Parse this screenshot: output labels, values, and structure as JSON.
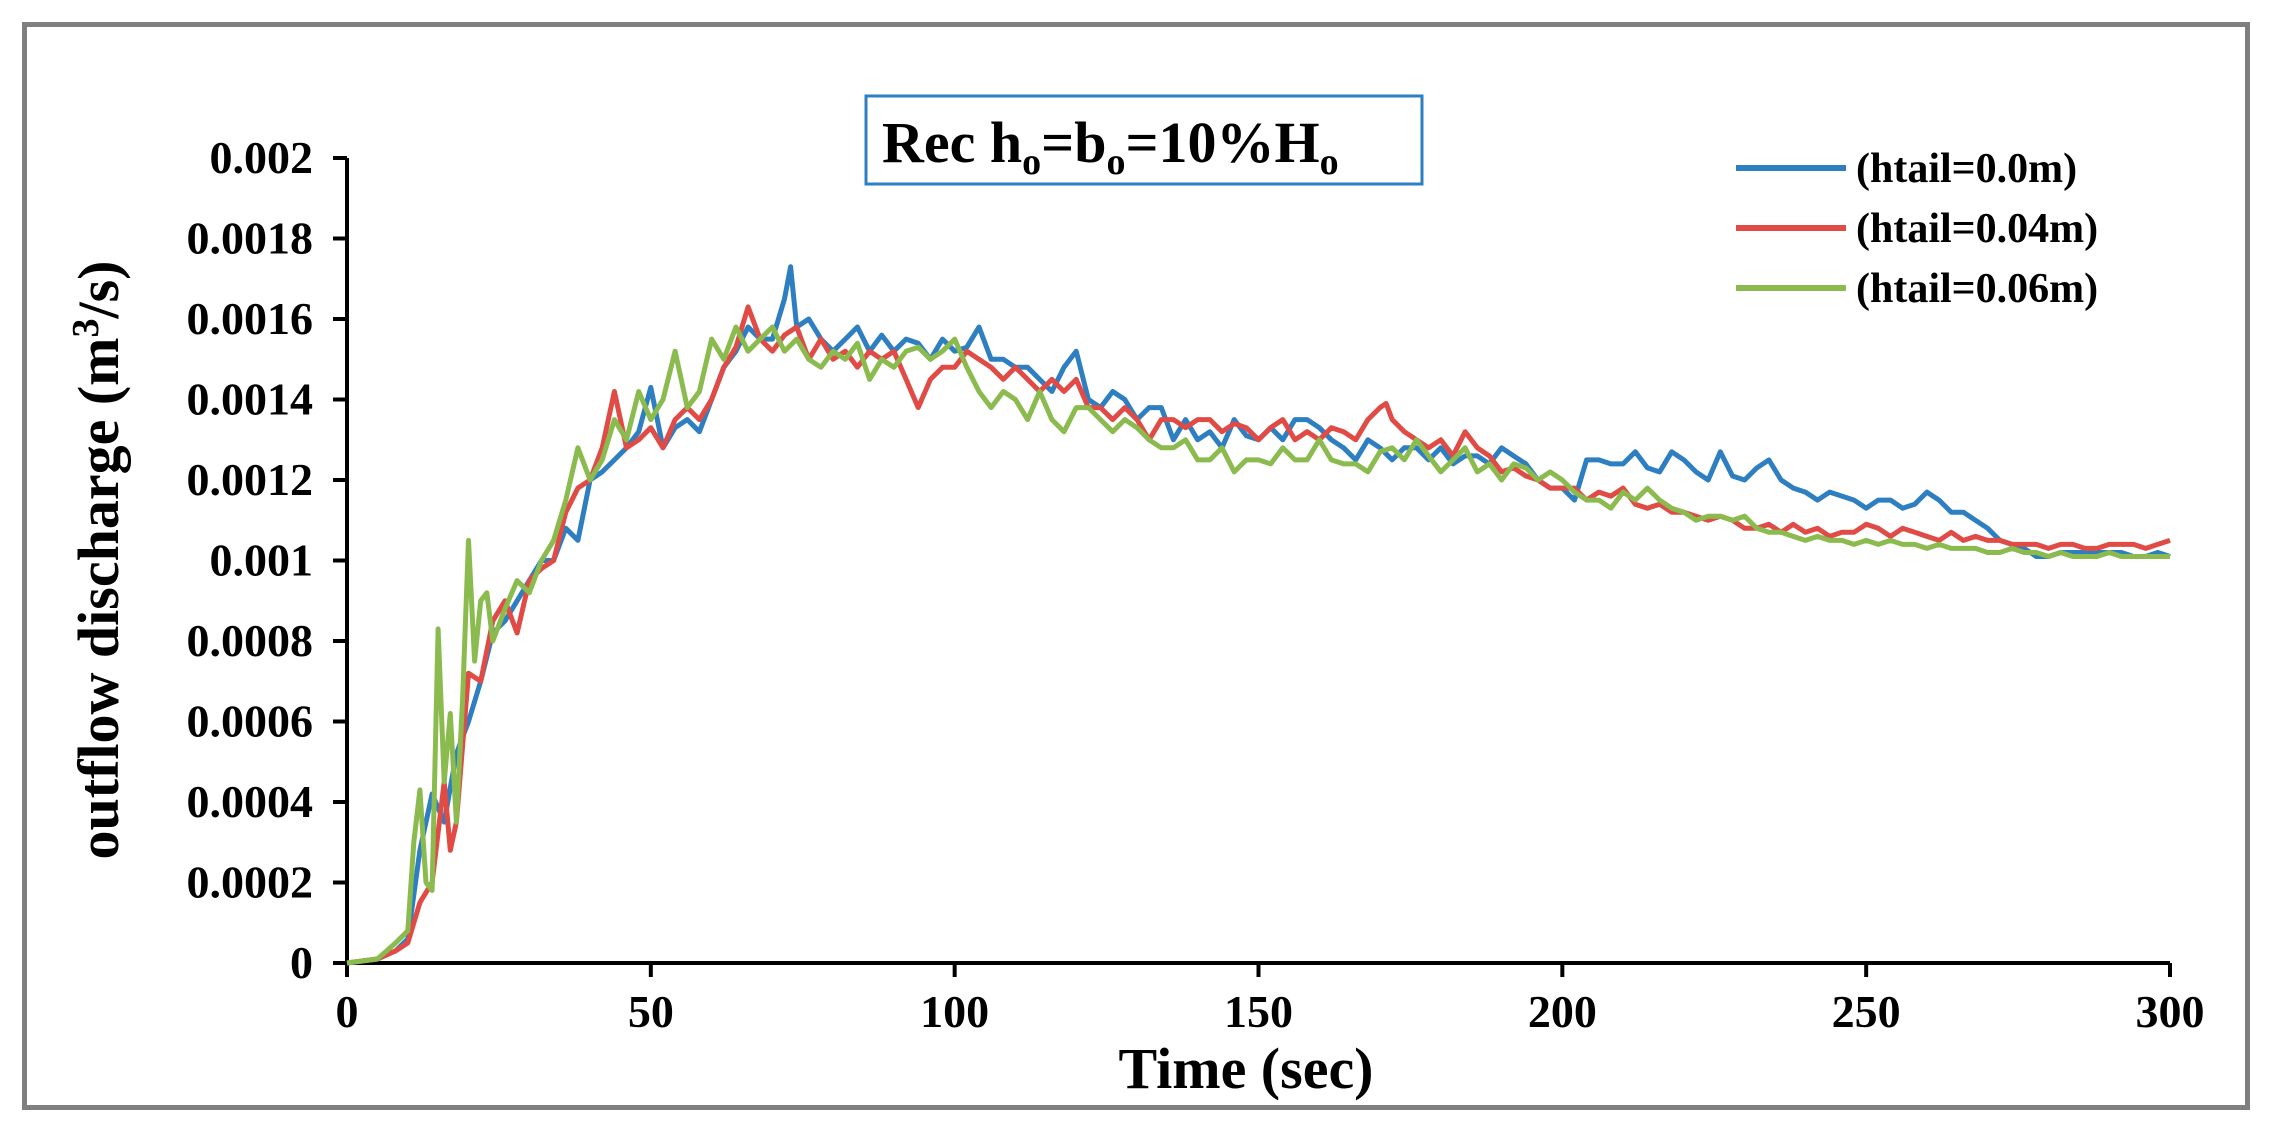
{
  "chart_data": {
    "type": "line",
    "title": {
      "prefix": "Rec h",
      "sub1": "o",
      "mid1": "=b",
      "sub2": "o",
      "mid2": "=10%H",
      "sub3": "o"
    },
    "xlabel": "Time (sec)",
    "ylabel": {
      "before": "outflow discharge (m",
      "sup": "3",
      "after": "/s)"
    },
    "xlim": [
      0,
      300
    ],
    "ylim": [
      0,
      0.002
    ],
    "xticks": [
      0,
      50,
      100,
      150,
      200,
      250,
      300
    ],
    "xtick_labels": [
      "0",
      "50",
      "100",
      "150",
      "200",
      "250",
      "300"
    ],
    "yticks": [
      0,
      0.0002,
      0.0004,
      0.0006,
      0.0008,
      0.001,
      0.0012,
      0.0014,
      0.0016,
      0.0018,
      0.002
    ],
    "ytick_labels": [
      "0",
      "0.0002",
      "0.0004",
      "0.0006",
      "0.0008",
      "0.001",
      "0.0012",
      "0.0014",
      "0.0016",
      "0.0018",
      "0.002"
    ],
    "grid": false,
    "legend_position": "top-right",
    "series": [
      {
        "name": "(htail=0.0m)",
        "color": "#2e7fc2",
        "x": [
          0,
          5,
          8,
          10,
          12,
          14,
          16,
          18,
          20,
          22,
          24,
          26,
          28,
          30,
          32,
          34,
          36,
          38,
          40,
          42,
          44,
          46,
          48,
          50,
          52,
          54,
          56,
          58,
          60,
          62,
          64,
          66,
          68,
          70,
          72,
          73,
          74,
          76,
          78,
          80,
          82,
          84,
          86,
          88,
          90,
          92,
          94,
          96,
          98,
          100,
          102,
          104,
          106,
          108,
          110,
          112,
          114,
          116,
          118,
          120,
          122,
          124,
          126,
          128,
          130,
          132,
          134,
          136,
          138,
          140,
          142,
          144,
          146,
          148,
          150,
          152,
          154,
          156,
          158,
          160,
          162,
          164,
          166,
          168,
          170,
          172,
          174,
          176,
          178,
          180,
          182,
          184,
          186,
          188,
          190,
          192,
          194,
          196,
          198,
          200,
          202,
          204,
          206,
          208,
          210,
          212,
          214,
          216,
          218,
          220,
          222,
          224,
          226,
          228,
          230,
          232,
          234,
          236,
          238,
          240,
          242,
          244,
          246,
          248,
          250,
          252,
          254,
          256,
          258,
          260,
          262,
          264,
          266,
          268,
          270,
          272,
          274,
          276,
          278,
          280,
          282,
          284,
          286,
          288,
          290,
          292,
          294,
          296,
          298,
          300
        ],
        "values": [
          0.0,
          1e-05,
          3e-05,
          6e-05,
          0.00028,
          0.00042,
          0.00035,
          0.00052,
          0.0006,
          0.0007,
          0.00082,
          0.00085,
          0.0009,
          0.00095,
          0.001,
          0.001,
          0.00108,
          0.00105,
          0.0012,
          0.00122,
          0.00125,
          0.00128,
          0.00132,
          0.00143,
          0.00128,
          0.00133,
          0.00135,
          0.00132,
          0.0014,
          0.00148,
          0.00152,
          0.00158,
          0.00155,
          0.00155,
          0.00165,
          0.00173,
          0.00158,
          0.0016,
          0.00155,
          0.00152,
          0.00155,
          0.00158,
          0.00152,
          0.00156,
          0.00152,
          0.00155,
          0.00154,
          0.0015,
          0.00155,
          0.00152,
          0.00153,
          0.00158,
          0.0015,
          0.0015,
          0.00148,
          0.00148,
          0.00145,
          0.00142,
          0.00148,
          0.00152,
          0.0014,
          0.00138,
          0.00142,
          0.0014,
          0.00135,
          0.00138,
          0.00138,
          0.0013,
          0.00135,
          0.0013,
          0.00132,
          0.00128,
          0.00135,
          0.00131,
          0.0013,
          0.00133,
          0.0013,
          0.00135,
          0.00135,
          0.00133,
          0.0013,
          0.00128,
          0.00125,
          0.0013,
          0.00128,
          0.00125,
          0.00128,
          0.00128,
          0.00125,
          0.00128,
          0.00124,
          0.00126,
          0.00126,
          0.00124,
          0.00128,
          0.00126,
          0.00124,
          0.0012,
          0.00118,
          0.00118,
          0.00115,
          0.00125,
          0.00125,
          0.00124,
          0.00124,
          0.00127,
          0.00123,
          0.00122,
          0.00127,
          0.00125,
          0.00122,
          0.0012,
          0.00127,
          0.00121,
          0.0012,
          0.00123,
          0.00125,
          0.0012,
          0.00118,
          0.00117,
          0.00115,
          0.00117,
          0.00116,
          0.00115,
          0.00113,
          0.00115,
          0.00115,
          0.00113,
          0.00114,
          0.00117,
          0.00115,
          0.00112,
          0.00112,
          0.0011,
          0.00108,
          0.00105,
          0.00104,
          0.00103,
          0.00101,
          0.00101,
          0.00102,
          0.00102,
          0.00102,
          0.00102,
          0.00102,
          0.00102,
          0.00101,
          0.00101,
          0.00102,
          0.00101
        ]
      },
      {
        "name": "(htail=0.04m)",
        "color": "#e04b45",
        "x": [
          0,
          5,
          8,
          10,
          12,
          14,
          16,
          17,
          18,
          20,
          22,
          24,
          26,
          28,
          30,
          32,
          34,
          36,
          38,
          40,
          42,
          44,
          46,
          48,
          50,
          52,
          54,
          56,
          58,
          60,
          62,
          64,
          66,
          68,
          70,
          72,
          74,
          76,
          78,
          80,
          82,
          84,
          86,
          88,
          90,
          92,
          94,
          96,
          98,
          100,
          102,
          104,
          106,
          108,
          110,
          112,
          114,
          116,
          118,
          120,
          122,
          124,
          126,
          128,
          130,
          132,
          134,
          136,
          138,
          140,
          142,
          144,
          146,
          148,
          150,
          152,
          154,
          156,
          158,
          160,
          162,
          164,
          166,
          168,
          170,
          171,
          172,
          174,
          176,
          178,
          180,
          182,
          184,
          186,
          188,
          190,
          192,
          194,
          196,
          198,
          200,
          202,
          204,
          206,
          208,
          210,
          212,
          214,
          216,
          218,
          220,
          222,
          224,
          226,
          228,
          230,
          232,
          234,
          236,
          238,
          240,
          242,
          244,
          246,
          248,
          250,
          252,
          254,
          256,
          258,
          260,
          262,
          264,
          266,
          268,
          270,
          272,
          274,
          276,
          278,
          280,
          282,
          284,
          286,
          288,
          290,
          292,
          294,
          296,
          298,
          300
        ],
        "values": [
          0.0,
          1e-05,
          3e-05,
          5e-05,
          0.00015,
          0.0002,
          0.00045,
          0.00028,
          0.00035,
          0.00072,
          0.0007,
          0.00085,
          0.0009,
          0.00082,
          0.00095,
          0.00098,
          0.001,
          0.00112,
          0.00118,
          0.0012,
          0.00128,
          0.00142,
          0.00128,
          0.0013,
          0.00133,
          0.00128,
          0.00135,
          0.00138,
          0.00135,
          0.0014,
          0.00148,
          0.00153,
          0.00163,
          0.00155,
          0.00152,
          0.00156,
          0.00158,
          0.0015,
          0.00155,
          0.0015,
          0.00152,
          0.00148,
          0.00152,
          0.0015,
          0.00152,
          0.00145,
          0.00138,
          0.00145,
          0.00148,
          0.00148,
          0.00152,
          0.0015,
          0.00148,
          0.00145,
          0.00148,
          0.00145,
          0.00142,
          0.00145,
          0.00142,
          0.00145,
          0.00138,
          0.00138,
          0.00135,
          0.00138,
          0.00135,
          0.0013,
          0.00135,
          0.00135,
          0.00133,
          0.00135,
          0.00135,
          0.00132,
          0.00134,
          0.00133,
          0.0013,
          0.00133,
          0.00135,
          0.0013,
          0.00132,
          0.0013,
          0.00133,
          0.00132,
          0.0013,
          0.00135,
          0.00138,
          0.00139,
          0.00135,
          0.00132,
          0.0013,
          0.00128,
          0.0013,
          0.00126,
          0.00132,
          0.00128,
          0.00126,
          0.00122,
          0.00123,
          0.00121,
          0.0012,
          0.00118,
          0.00118,
          0.00118,
          0.00115,
          0.00117,
          0.00116,
          0.00118,
          0.00114,
          0.00113,
          0.00114,
          0.00112,
          0.00112,
          0.00111,
          0.0011,
          0.00111,
          0.0011,
          0.00108,
          0.00108,
          0.00109,
          0.00107,
          0.00109,
          0.00107,
          0.00108,
          0.00106,
          0.00107,
          0.00107,
          0.00109,
          0.00108,
          0.00106,
          0.00108,
          0.00107,
          0.00106,
          0.00105,
          0.00107,
          0.00105,
          0.00106,
          0.00105,
          0.00105,
          0.00104,
          0.00104,
          0.00104,
          0.00103,
          0.00104,
          0.00104,
          0.00103,
          0.00103,
          0.00104,
          0.00104,
          0.00104,
          0.00103,
          0.00104,
          0.00105
        ]
      },
      {
        "name": "(htail=0.06m)",
        "color": "#8bbb4e",
        "x": [
          0,
          5,
          8,
          10,
          11,
          12,
          13,
          14,
          15,
          16,
          17,
          18,
          19,
          20,
          21,
          22,
          23,
          24,
          26,
          28,
          30,
          32,
          34,
          36,
          38,
          40,
          42,
          44,
          46,
          48,
          50,
          52,
          54,
          56,
          58,
          60,
          62,
          64,
          66,
          68,
          70,
          72,
          74,
          76,
          78,
          80,
          82,
          84,
          86,
          88,
          90,
          92,
          94,
          96,
          98,
          100,
          102,
          104,
          106,
          108,
          110,
          112,
          114,
          116,
          118,
          120,
          122,
          124,
          126,
          128,
          130,
          132,
          134,
          136,
          138,
          140,
          142,
          144,
          146,
          148,
          150,
          152,
          154,
          156,
          158,
          160,
          162,
          164,
          166,
          168,
          170,
          172,
          174,
          176,
          178,
          180,
          182,
          184,
          186,
          188,
          190,
          192,
          194,
          196,
          198,
          200,
          202,
          204,
          206,
          208,
          210,
          212,
          214,
          216,
          218,
          220,
          222,
          224,
          226,
          228,
          230,
          232,
          234,
          236,
          238,
          240,
          242,
          244,
          246,
          248,
          250,
          252,
          254,
          256,
          258,
          260,
          262,
          264,
          266,
          268,
          270,
          272,
          274,
          276,
          278,
          280,
          282,
          284,
          286,
          288,
          290,
          292,
          294,
          296,
          298,
          300
        ],
        "values": [
          0.0,
          1e-05,
          5e-05,
          8e-05,
          0.0003,
          0.00043,
          0.0002,
          0.00018,
          0.00083,
          0.00045,
          0.00062,
          0.00035,
          0.00065,
          0.00105,
          0.00075,
          0.0009,
          0.00092,
          0.0008,
          0.00088,
          0.00095,
          0.00092,
          0.001,
          0.00105,
          0.00115,
          0.00128,
          0.0012,
          0.00125,
          0.00135,
          0.0013,
          0.00142,
          0.00135,
          0.0014,
          0.00152,
          0.00138,
          0.00142,
          0.00155,
          0.0015,
          0.00158,
          0.00152,
          0.00155,
          0.00158,
          0.00152,
          0.00155,
          0.0015,
          0.00148,
          0.00152,
          0.0015,
          0.00154,
          0.00145,
          0.0015,
          0.00148,
          0.00152,
          0.00153,
          0.0015,
          0.00152,
          0.00155,
          0.00148,
          0.00142,
          0.00138,
          0.00142,
          0.0014,
          0.00135,
          0.00142,
          0.00135,
          0.00132,
          0.00138,
          0.00138,
          0.00135,
          0.00132,
          0.00135,
          0.00133,
          0.0013,
          0.00128,
          0.00128,
          0.0013,
          0.00125,
          0.00125,
          0.00128,
          0.00122,
          0.00125,
          0.00125,
          0.00124,
          0.00128,
          0.00125,
          0.00125,
          0.0013,
          0.00125,
          0.00124,
          0.00124,
          0.00122,
          0.00127,
          0.00128,
          0.00125,
          0.0013,
          0.00126,
          0.00122,
          0.00125,
          0.00128,
          0.00122,
          0.00124,
          0.0012,
          0.00124,
          0.00123,
          0.0012,
          0.00122,
          0.0012,
          0.00117,
          0.00115,
          0.00115,
          0.00113,
          0.00117,
          0.00115,
          0.00118,
          0.00115,
          0.00113,
          0.00112,
          0.0011,
          0.00111,
          0.00111,
          0.0011,
          0.00111,
          0.00108,
          0.00107,
          0.00107,
          0.00106,
          0.00105,
          0.00106,
          0.00105,
          0.00105,
          0.00104,
          0.00105,
          0.00104,
          0.00105,
          0.00104,
          0.00104,
          0.00103,
          0.00104,
          0.00103,
          0.00103,
          0.00103,
          0.00102,
          0.00102,
          0.00103,
          0.00102,
          0.00102,
          0.00101,
          0.00102,
          0.00101,
          0.00101,
          0.00101,
          0.00102,
          0.00101,
          0.00101,
          0.00101,
          0.00101,
          0.00101
        ]
      }
    ]
  }
}
